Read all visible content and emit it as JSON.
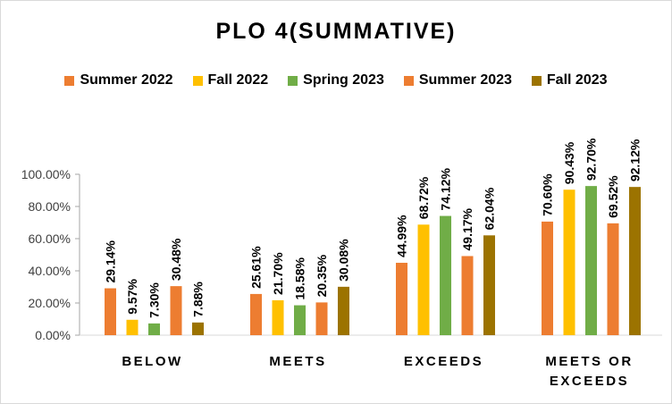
{
  "chart_data": {
    "type": "bar",
    "title": "PLO 4(SUMMATIVE)",
    "categories": [
      "BELOW",
      "MEETS",
      "EXCEEDS",
      "MEETS OR EXCEEDS"
    ],
    "series": [
      {
        "name": "Summer 2022",
        "color": "#ed7d31",
        "values": [
          29.14,
          25.61,
          44.99,
          70.6
        ],
        "labels": [
          "29.14%",
          "25.61%",
          "44.99%",
          "70.60%"
        ]
      },
      {
        "name": "Fall 2022",
        "color": "#ffc000",
        "values": [
          9.57,
          21.7,
          68.72,
          90.43
        ],
        "labels": [
          "9.57%",
          "21.70%",
          "68.72%",
          "90.43%"
        ]
      },
      {
        "name": "Spring 2023",
        "color": "#70ad47",
        "values": [
          7.3,
          18.58,
          74.12,
          92.7
        ],
        "labels": [
          "7.30%",
          "18.58%",
          "74.12%",
          "92.70%"
        ]
      },
      {
        "name": "Summer 2023",
        "color": "#ed7d31",
        "values": [
          30.48,
          20.35,
          49.17,
          69.52
        ],
        "labels": [
          "30.48%",
          "20.35%",
          "49.17%",
          "69.52%"
        ]
      },
      {
        "name": "Fall 2023",
        "color": "#9c7300",
        "values": [
          7.88,
          30.08,
          62.04,
          92.12
        ],
        "labels": [
          "7.88%",
          "30.08%",
          "62.04%",
          "92.12%"
        ]
      }
    ],
    "ylim": [
      0,
      100
    ],
    "yticks": [
      0,
      20,
      40,
      60,
      80,
      100
    ],
    "ytick_labels": [
      "0.00%",
      "20.00%",
      "40.00%",
      "60.00%",
      "80.00%",
      "100.00%"
    ],
    "grid": false,
    "legend_position": "top",
    "xlabel": "",
    "ylabel": ""
  }
}
